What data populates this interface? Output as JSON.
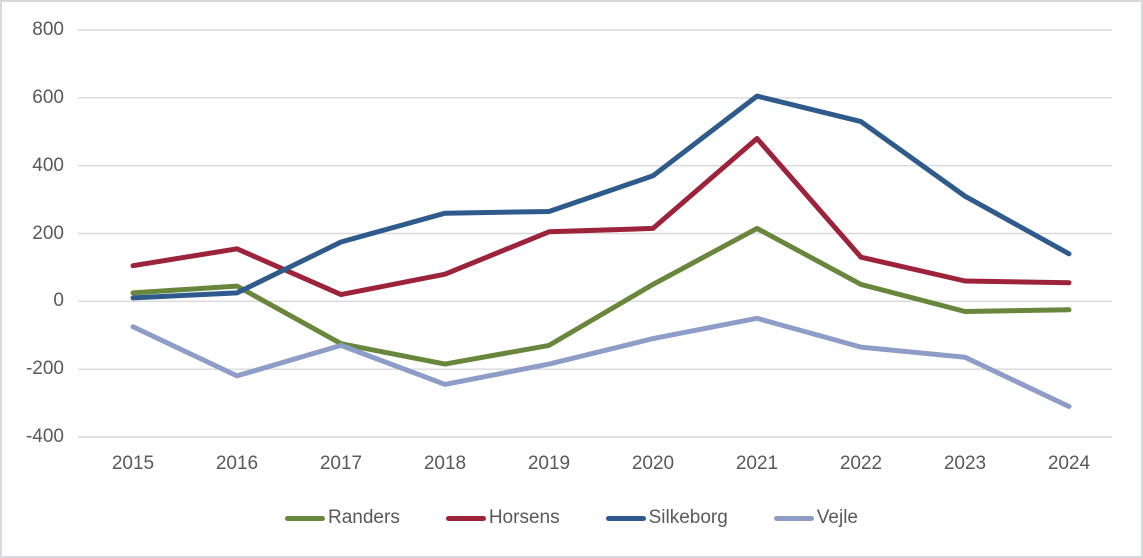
{
  "window": {
    "background": "#ffffff",
    "border_color": "#d5d8dc"
  },
  "chart_data": {
    "type": "line",
    "title": "",
    "xlabel": "",
    "ylabel": "",
    "x_categories": [
      "2015",
      "2016",
      "2017",
      "2018",
      "2019",
      "2020",
      "2021",
      "2022",
      "2023",
      "2024"
    ],
    "y_ticks": [
      800,
      600,
      400,
      200,
      0,
      -200,
      -400
    ],
    "ylim": [
      -400,
      800
    ],
    "y_tick_step": 200,
    "grid": "horizontal-only",
    "legend_position": "bottom-center",
    "series": [
      {
        "name": "Randers",
        "color": "#69873C",
        "values": [
          25,
          45,
          -125,
          -185,
          -130,
          50,
          215,
          50,
          -30,
          -25
        ]
      },
      {
        "name": "Horsens",
        "color": "#9C2339",
        "values": [
          105,
          155,
          20,
          80,
          205,
          215,
          480,
          130,
          60,
          55
        ]
      },
      {
        "name": "Silkeborg",
        "color": "#2E5A8C",
        "values": [
          10,
          25,
          175,
          260,
          265,
          370,
          605,
          530,
          310,
          140
        ]
      },
      {
        "name": "Vejle",
        "color": "#8E9DC8",
        "values": [
          -75,
          -220,
          -130,
          -245,
          -185,
          -110,
          -50,
          -135,
          -165,
          -310
        ]
      }
    ]
  },
  "styles": {
    "grid_color": "#d9d9d9",
    "tick_label_color": "#595959",
    "legend_label_color": "#595959",
    "line_width": 5
  }
}
